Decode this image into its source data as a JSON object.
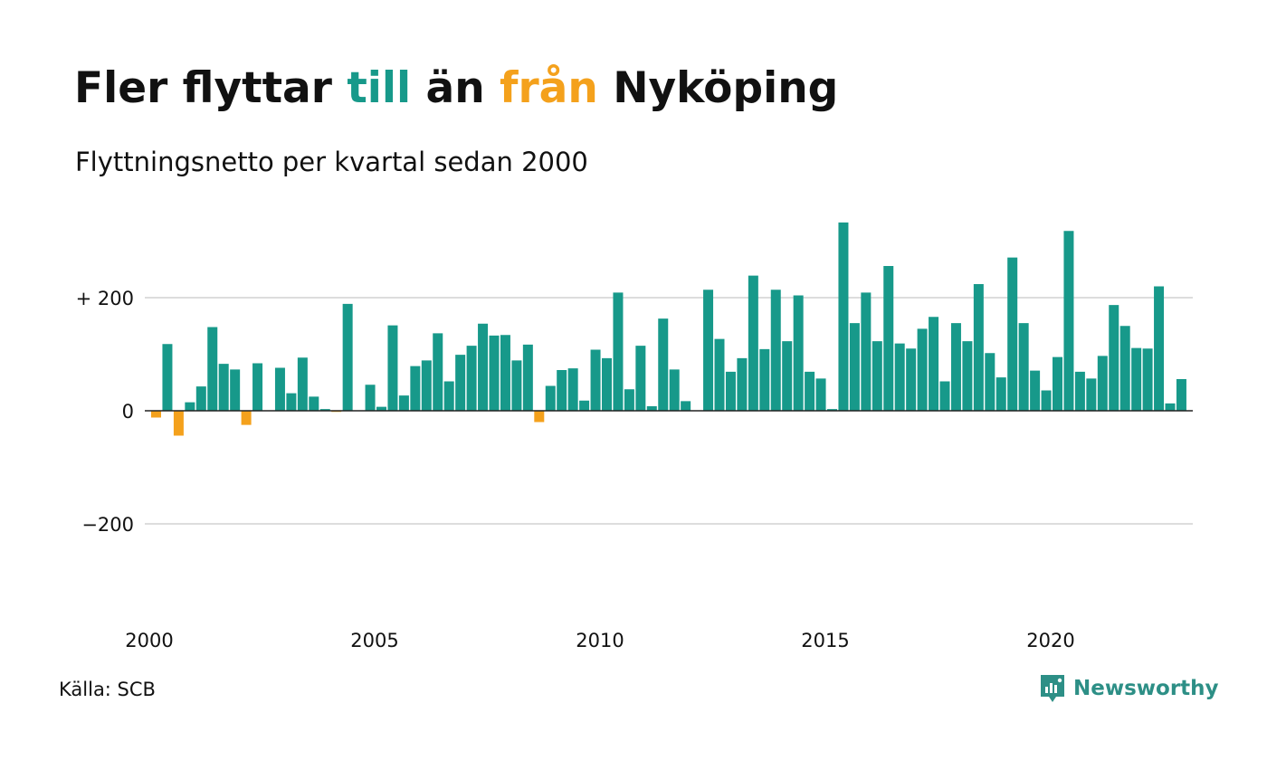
{
  "header": {
    "title_parts": [
      "Fler flyttar ",
      "till",
      " än ",
      "från",
      " Nyköping"
    ],
    "subtitle": "Flyttningsnetto per kvartal sedan 2000"
  },
  "footer": {
    "source": "Källa: SCB",
    "brand": "Newsworthy",
    "brand_icon": "newsworthy-logo-icon"
  },
  "colors": {
    "positive": "#17998a",
    "negative": "#f4a11c",
    "grid": "#dddddd",
    "baseline": "#222222",
    "brand": "#2d8f86"
  },
  "chart_data": {
    "type": "bar",
    "title": "Fler flyttar till än från Nyköping",
    "subtitle": "Flyttningsnetto per kvartal sedan 2000",
    "xlabel": "",
    "ylabel": "",
    "ylim": [
      -380,
      350
    ],
    "yticks": [
      200,
      0,
      -200
    ],
    "ytick_labels": [
      "+ 200",
      "0",
      "−200"
    ],
    "xticks": [
      2000,
      2005,
      2010,
      2015,
      2020
    ],
    "x_start": "2000 K1",
    "x_start_year": 2000,
    "quarters_per_year": 4,
    "grid": true,
    "legend": "none",
    "values": [
      -12,
      118,
      -44,
      15,
      43,
      148,
      83,
      73,
      -25,
      84,
      0,
      76,
      31,
      94,
      25,
      3,
      -2,
      189,
      0,
      46,
      7,
      151,
      27,
      79,
      89,
      137,
      52,
      99,
      115,
      154,
      133,
      134,
      89,
      117,
      -20,
      44,
      72,
      75,
      18,
      108,
      93,
      209,
      38,
      115,
      8,
      163,
      73,
      17,
      0,
      214,
      127,
      69,
      93,
      239,
      109,
      214,
      123,
      204,
      69,
      57,
      3,
      333,
      155,
      209,
      123,
      256,
      119,
      110,
      145,
      166,
      52,
      155,
      123,
      224,
      102,
      59,
      271,
      155,
      71,
      36,
      95,
      318,
      69,
      57,
      97,
      187,
      150,
      111,
      110,
      220,
      13,
      56
    ]
  }
}
